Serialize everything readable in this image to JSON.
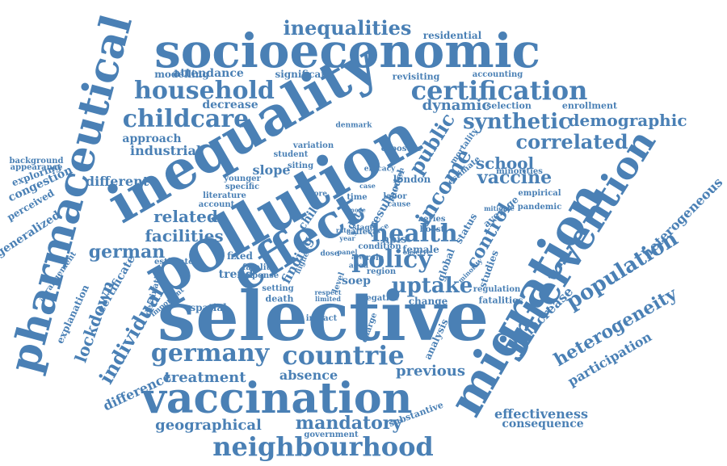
{
  "color": "#4a80b5",
  "words": [
    {
      "text": "selective"
    },
    {
      "text": "migration"
    },
    {
      "text": "pollution"
    },
    {
      "text": "inequality"
    },
    {
      "text": "effect"
    },
    {
      "text": "pharmaceutical"
    },
    {
      "text": "socioeconomic"
    },
    {
      "text": "vaccination"
    },
    {
      "text": "intervention"
    },
    {
      "text": "neighbourhood"
    },
    {
      "text": "countrie"
    },
    {
      "text": "germany"
    },
    {
      "text": "certification"
    },
    {
      "text": "household"
    },
    {
      "text": "childcare"
    },
    {
      "text": "inequalities"
    },
    {
      "text": "policy"
    },
    {
      "text": "population"
    },
    {
      "text": "heterogeneity"
    },
    {
      "text": "health"
    },
    {
      "text": "income"
    },
    {
      "text": "synthetic"
    },
    {
      "text": "correlated"
    },
    {
      "text": "demographic"
    },
    {
      "text": "vaccine"
    },
    {
      "text": "school"
    },
    {
      "text": "uptake"
    },
    {
      "text": "public"
    },
    {
      "text": "control"
    },
    {
      "text": "individual"
    },
    {
      "text": "lockdown"
    },
    {
      "text": "german"
    },
    {
      "text": "facilities"
    },
    {
      "text": "related"
    },
    {
      "text": "mandatory"
    },
    {
      "text": "geographical"
    },
    {
      "text": "treatment"
    },
    {
      "text": "difference"
    },
    {
      "text": "heterogeneous"
    },
    {
      "text": "participation"
    },
    {
      "text": "increase"
    },
    {
      "text": "previous"
    },
    {
      "text": "absence"
    },
    {
      "text": "effectiveness"
    },
    {
      "text": "consequence"
    },
    {
      "text": "dynamic"
    },
    {
      "text": "industrial"
    },
    {
      "text": "approach"
    },
    {
      "text": "different"
    },
    {
      "text": "slope"
    },
    {
      "text": "decrease"
    },
    {
      "text": "attendance"
    },
    {
      "text": "significant"
    },
    {
      "text": "modelling"
    },
    {
      "text": "residential"
    },
    {
      "text": "revisiting"
    },
    {
      "text": "accounting"
    },
    {
      "text": "selection"
    },
    {
      "text": "enrollment"
    },
    {
      "text": "finding"
    },
    {
      "text": "npis"
    },
    {
      "text": "soep"
    },
    {
      "text": "trend"
    },
    {
      "text": "fixed"
    },
    {
      "text": "death"
    },
    {
      "text": "spatial"
    },
    {
      "text": "certificate"
    },
    {
      "text": "explanation"
    },
    {
      "text": "arrangement"
    },
    {
      "text": "generalized"
    },
    {
      "text": "perceived"
    },
    {
      "text": "congestion"
    },
    {
      "text": "exploring"
    },
    {
      "text": "appearance"
    },
    {
      "text": "background"
    },
    {
      "text": "female"
    },
    {
      "text": "global"
    },
    {
      "text": "studies"
    },
    {
      "text": "change"
    },
    {
      "text": "fatalities"
    },
    {
      "text": "analysis"
    },
    {
      "text": "substantive"
    },
    {
      "text": "government"
    },
    {
      "text": "impact"
    },
    {
      "text": "london"
    },
    {
      "text": "model"
    },
    {
      "text": "result"
    },
    {
      "text": "data"
    },
    {
      "text": "child"
    },
    {
      "text": "siting"
    },
    {
      "text": "student"
    },
    {
      "text": "variation"
    },
    {
      "text": "exposure"
    },
    {
      "text": "mortality"
    },
    {
      "text": "estimate"
    },
    {
      "text": "minorities"
    },
    {
      "text": "empirical"
    },
    {
      "text": "pandemic"
    },
    {
      "text": "average"
    },
    {
      "text": "status"
    },
    {
      "text": "denmark"
    },
    {
      "text": "younger"
    },
    {
      "text": "specific"
    },
    {
      "text": "literature"
    },
    {
      "text": "account"
    },
    {
      "text": "estimator"
    },
    {
      "text": "fatality"
    },
    {
      "text": "response"
    },
    {
      "text": "setting"
    },
    {
      "text": "destination"
    },
    {
      "text": "important"
    },
    {
      "text": "region"
    },
    {
      "text": "condition"
    },
    {
      "text": "negative"
    },
    {
      "text": "labor"
    },
    {
      "text": "series"
    },
    {
      "text": "boost"
    },
    {
      "text": "regulation"
    },
    {
      "text": "level"
    },
    {
      "text": "charge"
    },
    {
      "text": "efficacy"
    },
    {
      "text": "time"
    },
    {
      "text": "more"
    },
    {
      "text": "higher"
    },
    {
      "text": "limited"
    },
    {
      "text": "aged"
    },
    {
      "text": "dose"
    },
    {
      "text": "role"
    },
    {
      "text": "force"
    },
    {
      "text": "stage"
    },
    {
      "text": "cause"
    },
    {
      "text": "mitigate"
    },
    {
      "text": "minority"
    },
    {
      "text": "year"
    },
    {
      "text": "respect"
    },
    {
      "text": "panel"
    },
    {
      "text": "area"
    },
    {
      "text": "case"
    },
    {
      "text": "person"
    },
    {
      "text": "observe"
    },
    {
      "text": "rate"
    },
    {
      "text": "day"
    },
    {
      "text": "mode"
    },
    {
      "text": "affect"
    }
  ]
}
